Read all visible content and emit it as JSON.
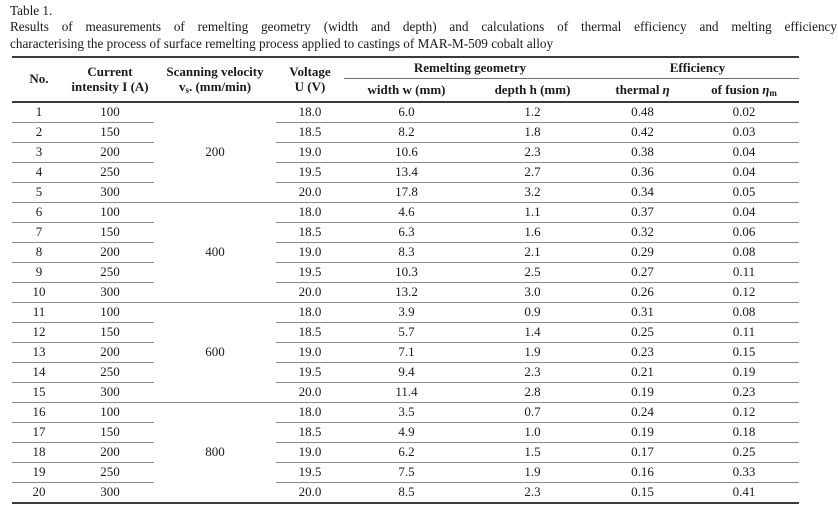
{
  "colors": {
    "text": "#1a1a1a",
    "rule_thin": "#8a8a8a",
    "rule_thick": "#3a3a3a",
    "background": "#ffffff"
  },
  "caption": {
    "label": "Table 1.",
    "line1": "Results of measurements of remelting geometry (width and depth) and calculations of thermal efficiency and melting efficiency",
    "line2": "characterising the process of surface remelting process applied to castings of MAR-M-509 cobalt alloy"
  },
  "table": {
    "columns": {
      "no": "No.",
      "current": [
        "Current",
        "intensity I (A)"
      ],
      "scanning": {
        "line1": "Scanning velocity",
        "v": "v",
        "sub": "s",
        "rest": ". (mm/min)"
      },
      "voltage": [
        "Voltage",
        "U (V)"
      ],
      "remelting_group": "Remelting geometry",
      "width": "width w (mm)",
      "depth": "depth h (mm)",
      "efficiency_group": "Efficiency",
      "thermal": {
        "label": "thermal",
        "sym": "η"
      },
      "fusion": {
        "label": "of fusion",
        "sym": "η",
        "sub": "m"
      }
    },
    "groups": [
      {
        "velocity": "200",
        "rows": [
          [
            "1",
            "100",
            "18.0",
            "6.0",
            "1.2",
            "0.48",
            "0.02"
          ],
          [
            "2",
            "150",
            "18.5",
            "8.2",
            "1.8",
            "0.42",
            "0.03"
          ],
          [
            "3",
            "200",
            "19.0",
            "10.6",
            "2.3",
            "0.38",
            "0.04"
          ],
          [
            "4",
            "250",
            "19.5",
            "13.4",
            "2.7",
            "0.36",
            "0.04"
          ],
          [
            "5",
            "300",
            "20.0",
            "17.8",
            "3.2",
            "0.34",
            "0.05"
          ]
        ]
      },
      {
        "velocity": "400",
        "rows": [
          [
            "6",
            "100",
            "18.0",
            "4.6",
            "1.1",
            "0.37",
            "0.04"
          ],
          [
            "7",
            "150",
            "18.5",
            "6.3",
            "1.6",
            "0.32",
            "0.06"
          ],
          [
            "8",
            "200",
            "19.0",
            "8.3",
            "2.1",
            "0.29",
            "0.08"
          ],
          [
            "9",
            "250",
            "19.5",
            "10.3",
            "2.5",
            "0.27",
            "0.11"
          ],
          [
            "10",
            "300",
            "20.0",
            "13.2",
            "3.0",
            "0.26",
            "0.12"
          ]
        ]
      },
      {
        "velocity": "600",
        "rows": [
          [
            "11",
            "100",
            "18.0",
            "3.9",
            "0.9",
            "0.31",
            "0.08"
          ],
          [
            "12",
            "150",
            "18.5",
            "5.7",
            "1.4",
            "0.25",
            "0.11"
          ],
          [
            "13",
            "200",
            "19.0",
            "7.1",
            "1.9",
            "0.23",
            "0.15"
          ],
          [
            "14",
            "250",
            "19.5",
            "9.4",
            "2.3",
            "0.21",
            "0.19"
          ],
          [
            "15",
            "300",
            "20.0",
            "11.4",
            "2.8",
            "0.19",
            "0.23"
          ]
        ]
      },
      {
        "velocity": "800",
        "rows": [
          [
            "16",
            "100",
            "18.0",
            "3.5",
            "0.7",
            "0.24",
            "0.12"
          ],
          [
            "17",
            "150",
            "18.5",
            "4.9",
            "1.0",
            "0.19",
            "0.18"
          ],
          [
            "18",
            "200",
            "19.0",
            "6.2",
            "1.5",
            "0.17",
            "0.25"
          ],
          [
            "19",
            "250",
            "19.5",
            "7.5",
            "1.9",
            "0.16",
            "0.33"
          ],
          [
            "20",
            "300",
            "20.0",
            "8.5",
            "2.3",
            "0.15",
            "0.41"
          ]
        ]
      }
    ]
  }
}
